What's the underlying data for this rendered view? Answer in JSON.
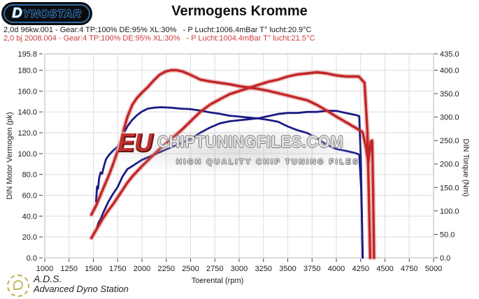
{
  "header": {
    "logo_text": "DYNOSTAR",
    "title": "Vermogens Kromme"
  },
  "info_lines": [
    {
      "text": "2,0d 96kw.001 - Gear:4 TP:100% DE:95% XL:30%   - P Lucht:1006.4mBar T° lucht:20.9°C",
      "color": "#1a1a1a"
    },
    {
      "text": "2,0 bj 2008.004 - Gear:4 TP:100% DE:95% XL:30%   - P Lucht:1004.4mBar T° lucht:21.5°C",
      "color": "#cc3a3a"
    }
  ],
  "watermark": {
    "prefix": "EU",
    "main": "CHIPTUNINGFILES.COM",
    "sub": "HIGH QUALITY CHIP TUNING FILES"
  },
  "footer": {
    "abbr": "A.D.S.",
    "name": "Advanced Dyno Station"
  },
  "chart_data": {
    "type": "line",
    "title": "Vermogens Kromme",
    "xlabel": "Toerental (rpm)",
    "ylabel_left": "DIN Motor Vermogen (pk)",
    "ylabel_right": "DIN Torque (Nm)",
    "grid": true,
    "x_range": [
      1000,
      5000
    ],
    "x_ticks": [
      1000,
      1250,
      1500,
      1750,
      2000,
      2250,
      2500,
      2750,
      3000,
      3250,
      3500,
      3750,
      4000,
      4250,
      4500,
      4750,
      5000
    ],
    "y_left_range": [
      0,
      195.8
    ],
    "y_left_ticks": [
      195.8,
      180,
      160,
      140,
      120,
      100,
      80,
      60,
      40,
      20,
      0
    ],
    "y_right_range": [
      0,
      435
    ],
    "y_right_ticks": [
      435,
      400,
      350,
      300,
      250,
      200,
      150,
      100,
      50,
      0
    ],
    "grid_color": "#dedede",
    "border_color": "#b5b5b5",
    "series": [
      {
        "name": "torque-blue",
        "axis": "right",
        "unit": "Nm",
        "color": "#1b1b86",
        "width": 2.8,
        "halo": false,
        "points": [
          [
            1528,
            120
          ],
          [
            1538,
            152
          ],
          [
            1548,
            147
          ],
          [
            1560,
            170
          ],
          [
            1575,
            182
          ],
          [
            1590,
            179
          ],
          [
            1610,
            196
          ],
          [
            1630,
            210
          ],
          [
            1660,
            219
          ],
          [
            1700,
            228
          ],
          [
            1750,
            237
          ],
          [
            1800,
            259
          ],
          [
            1850,
            280
          ],
          [
            1900,
            294
          ],
          [
            1950,
            304
          ],
          [
            2000,
            312
          ],
          [
            2060,
            318
          ],
          [
            2120,
            320
          ],
          [
            2200,
            321
          ],
          [
            2300,
            320
          ],
          [
            2400,
            318
          ],
          [
            2500,
            317
          ],
          [
            2600,
            314
          ],
          [
            2700,
            310
          ],
          [
            2800,
            307
          ],
          [
            2900,
            303
          ],
          [
            3000,
            301
          ],
          [
            3100,
            299
          ],
          [
            3200,
            297
          ],
          [
            3300,
            294
          ],
          [
            3400,
            290
          ],
          [
            3500,
            280
          ],
          [
            3600,
            272
          ],
          [
            3700,
            266
          ],
          [
            3800,
            255
          ],
          [
            3900,
            241
          ],
          [
            4000,
            232
          ],
          [
            4100,
            228
          ],
          [
            4200,
            223
          ],
          [
            4235,
            220
          ],
          [
            4255,
            150
          ],
          [
            4265,
            70
          ],
          [
            4272,
            0
          ]
        ]
      },
      {
        "name": "power-blue",
        "axis": "left",
        "unit": "pk",
        "color": "#1b1b86",
        "width": 2.8,
        "halo": false,
        "points": [
          [
            1535,
            28
          ],
          [
            1555,
            34
          ],
          [
            1575,
            37
          ],
          [
            1600,
            43
          ],
          [
            1650,
            53
          ],
          [
            1700,
            61
          ],
          [
            1750,
            68
          ],
          [
            1800,
            78
          ],
          [
            1850,
            85
          ],
          [
            1900,
            88
          ],
          [
            1950,
            91
          ],
          [
            2000,
            94
          ],
          [
            2100,
            98
          ],
          [
            2200,
            102
          ],
          [
            2300,
            106
          ],
          [
            2400,
            110
          ],
          [
            2500,
            114
          ],
          [
            2600,
            120
          ],
          [
            2700,
            125
          ],
          [
            2800,
            129
          ],
          [
            2900,
            131
          ],
          [
            3000,
            132
          ],
          [
            3100,
            133
          ],
          [
            3200,
            134
          ],
          [
            3300,
            136
          ],
          [
            3400,
            138
          ],
          [
            3500,
            139
          ],
          [
            3600,
            139
          ],
          [
            3700,
            140
          ],
          [
            3800,
            140
          ],
          [
            3900,
            141
          ],
          [
            4000,
            141
          ],
          [
            4100,
            139
          ],
          [
            4200,
            137
          ],
          [
            4235,
            136
          ],
          [
            4252,
            95
          ],
          [
            4262,
            45
          ],
          [
            4270,
            0
          ]
        ]
      },
      {
        "name": "torque-red",
        "axis": "right",
        "unit": "Nm",
        "color": "#c22525",
        "width": 3.4,
        "halo": true,
        "points": [
          [
            1480,
            92
          ],
          [
            1530,
            112
          ],
          [
            1570,
            132
          ],
          [
            1610,
            152
          ],
          [
            1660,
            176
          ],
          [
            1700,
            198
          ],
          [
            1750,
            228
          ],
          [
            1800,
            264
          ],
          [
            1850,
            300
          ],
          [
            1900,
            326
          ],
          [
            1950,
            341
          ],
          [
            2000,
            352
          ],
          [
            2060,
            364
          ],
          [
            2120,
            378
          ],
          [
            2180,
            390
          ],
          [
            2240,
            397
          ],
          [
            2300,
            400
          ],
          [
            2360,
            400
          ],
          [
            2420,
            397
          ],
          [
            2480,
            392
          ],
          [
            2540,
            386
          ],
          [
            2600,
            380
          ],
          [
            2700,
            376
          ],
          [
            2800,
            373
          ],
          [
            2900,
            370
          ],
          [
            3000,
            366
          ],
          [
            3100,
            363
          ],
          [
            3200,
            360
          ],
          [
            3300,
            356
          ],
          [
            3400,
            351
          ],
          [
            3500,
            346
          ],
          [
            3600,
            341
          ],
          [
            3700,
            336
          ],
          [
            3800,
            326
          ],
          [
            3900,
            314
          ],
          [
            4000,
            301
          ],
          [
            4100,
            289
          ],
          [
            4200,
            277
          ],
          [
            4270,
            268
          ],
          [
            4300,
            240
          ],
          [
            4330,
            205
          ],
          [
            4355,
            248
          ],
          [
            4368,
            250
          ],
          [
            4378,
            150
          ],
          [
            4388,
            0
          ]
        ]
      },
      {
        "name": "power-red",
        "axis": "left",
        "unit": "pk",
        "color": "#c22525",
        "width": 3.4,
        "halo": true,
        "points": [
          [
            1480,
            19
          ],
          [
            1550,
            30
          ],
          [
            1600,
            38
          ],
          [
            1650,
            45
          ],
          [
            1700,
            51
          ],
          [
            1750,
            58
          ],
          [
            1800,
            65
          ],
          [
            1850,
            72
          ],
          [
            1900,
            78
          ],
          [
            2000,
            88
          ],
          [
            2100,
            97
          ],
          [
            2200,
            106
          ],
          [
            2300,
            114
          ],
          [
            2400,
            122
          ],
          [
            2500,
            131
          ],
          [
            2600,
            140
          ],
          [
            2700,
            147
          ],
          [
            2800,
            152
          ],
          [
            2900,
            157
          ],
          [
            3000,
            160
          ],
          [
            3100,
            163
          ],
          [
            3200,
            166
          ],
          [
            3300,
            169
          ],
          [
            3400,
            171
          ],
          [
            3500,
            174
          ],
          [
            3600,
            176
          ],
          [
            3700,
            177
          ],
          [
            3800,
            178
          ],
          [
            3900,
            177
          ],
          [
            4000,
            175
          ],
          [
            4100,
            174
          ],
          [
            4230,
            174
          ],
          [
            4290,
            168
          ],
          [
            4320,
            120
          ],
          [
            4335,
            55
          ],
          [
            4348,
            0
          ]
        ]
      }
    ]
  }
}
